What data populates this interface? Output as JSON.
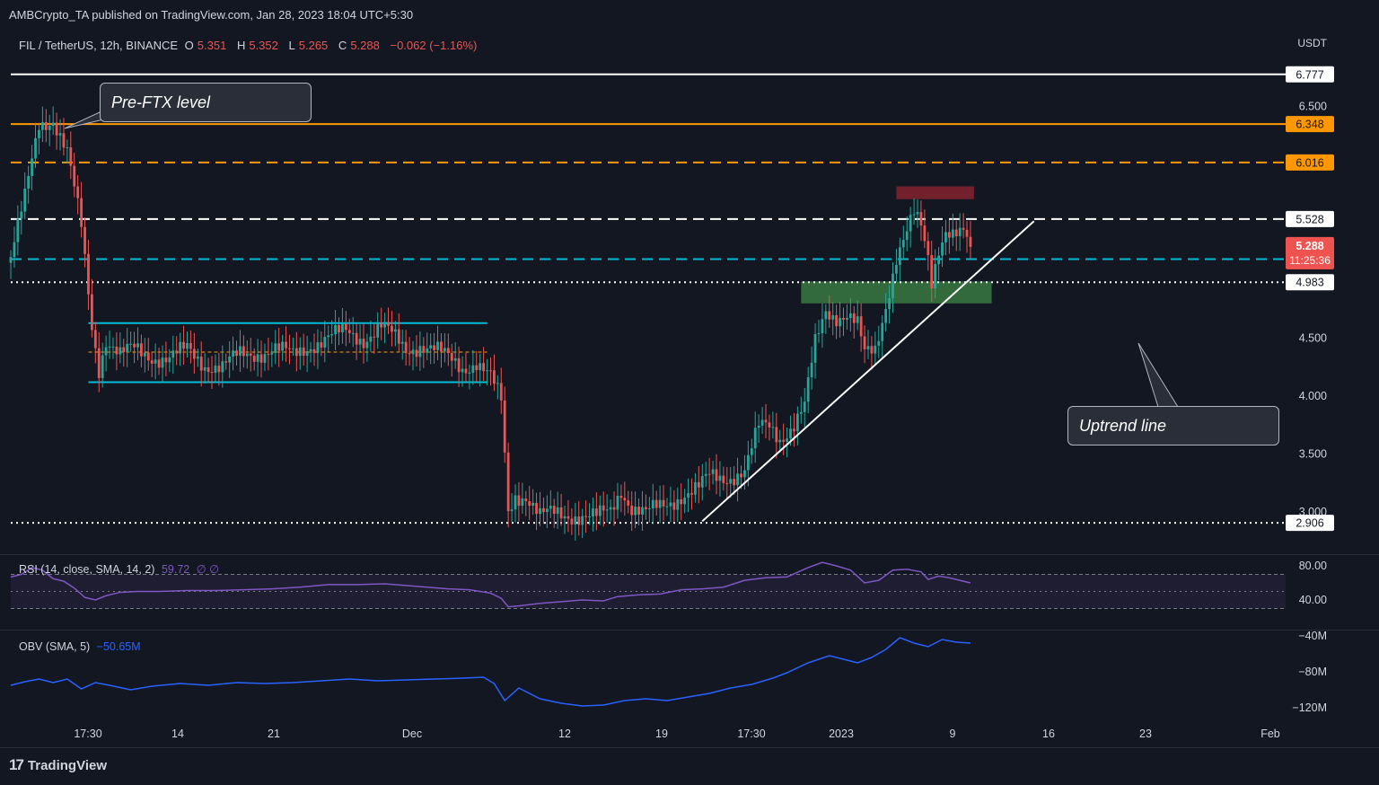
{
  "header": {
    "publisher": "AMBCrypto_TA published on TradingView.com, Jan 28, 2023 18:04 UTC+5:30"
  },
  "legend": {
    "symbol": "FIL / TetherUS, 12h, BINANCE",
    "open_label": "O",
    "open": "5.351",
    "high_label": "H",
    "high": "5.352",
    "low_label": "L",
    "low": "5.265",
    "close_label": "C",
    "close": "5.288",
    "change": "−0.062 (−1.16%)"
  },
  "currency": "USDT",
  "annotations": {
    "pre_ftx": "Pre-FTX level",
    "uptrend": "Uptrend line"
  },
  "price_tags": {
    "last": "5.288",
    "countdown": "11:25:36",
    "l6777": "6.777",
    "l6348": "6.348",
    "l6016": "6.016",
    "l5528": "5.528",
    "l5182": "5.182",
    "l4983": "4.983",
    "l2906": "2.906"
  },
  "rsi_panel": {
    "label": "RSI (14, close, SMA, 14, 2)",
    "value": "59.72",
    "extra": "∅ ∅",
    "ticks": [
      "80.00",
      "40.00"
    ]
  },
  "obv_panel": {
    "label": "OBV (SMA, 5)",
    "value": "−50.65M",
    "ticks": [
      "−40M",
      "−80M",
      "−120M"
    ]
  },
  "brand": "TradingView",
  "colors": {
    "bg": "#131722",
    "up": "#26a69a",
    "down": "#ef5350",
    "orange": "#ff9800",
    "cyan": "#00bcd4",
    "rsi": "#7e57c2",
    "obv": "#2962ff"
  },
  "chart_data": {
    "type": "candlestick",
    "timeframe": "12h",
    "y_axis_ticks": [
      6.5,
      4.5,
      4.0,
      3.5,
      3.0
    ],
    "ylim": [
      2.7,
      7.1
    ],
    "x_tick_labels": [
      "17:30",
      "14",
      "21",
      "Dec",
      "12",
      "19",
      "17:30",
      "2023",
      "9",
      "16",
      "23",
      "Feb"
    ],
    "horizontal_levels": [
      {
        "value": 6.777,
        "style": "solid",
        "color": "#ffffff"
      },
      {
        "value": 6.348,
        "style": "solid",
        "color": "#ff9800"
      },
      {
        "value": 6.016,
        "style": "dashed",
        "color": "#ff9800"
      },
      {
        "value": 5.528,
        "style": "dashed",
        "color": "#ffffff"
      },
      {
        "value": 5.182,
        "style": "dashed",
        "color": "#00bcd4"
      },
      {
        "value": 4.983,
        "style": "dotted",
        "color": "#ffffff"
      },
      {
        "value": 2.906,
        "style": "dotted",
        "color": "#ffffff"
      }
    ],
    "trendline": {
      "from": {
        "bar": 196,
        "price": 2.92
      },
      "to": {
        "bar": 290,
        "price": 5.51
      }
    },
    "zones": [
      {
        "kind": "demand",
        "bars": [
          224,
          278
        ],
        "price": [
          4.8,
          4.99
        ]
      },
      {
        "kind": "supply",
        "bars": [
          251,
          273
        ],
        "price": [
          5.7,
          5.81
        ]
      }
    ],
    "range_box": {
      "bars": [
        22,
        135
      ],
      "top": 4.63,
      "bottom": 4.12,
      "mid": 4.38
    },
    "close_path": [
      [
        0,
        5.2
      ],
      [
        4,
        5.7
      ],
      [
        8,
        6.35
      ],
      [
        12,
        6.4
      ],
      [
        16,
        6.1
      ],
      [
        20,
        5.45
      ],
      [
        23,
        4.6
      ],
      [
        25,
        4.25
      ],
      [
        27,
        4.5
      ],
      [
        31,
        4.35
      ],
      [
        35,
        4.4
      ],
      [
        40,
        4.35
      ],
      [
        45,
        4.32
      ],
      [
        50,
        4.4
      ],
      [
        55,
        4.28
      ],
      [
        60,
        4.25
      ],
      [
        65,
        4.35
      ],
      [
        70,
        4.38
      ],
      [
        75,
        4.4
      ],
      [
        80,
        4.35
      ],
      [
        85,
        4.45
      ],
      [
        90,
        4.5
      ],
      [
        95,
        4.55
      ],
      [
        100,
        4.5
      ],
      [
        105,
        4.6
      ],
      [
        108,
        4.52
      ],
      [
        112,
        4.4
      ],
      [
        116,
        4.45
      ],
      [
        120,
        4.4
      ],
      [
        124,
        4.32
      ],
      [
        128,
        4.25
      ],
      [
        132,
        4.3
      ],
      [
        136,
        4.15
      ],
      [
        139,
        3.95
      ],
      [
        141,
        3.0
      ],
      [
        143,
        3.15
      ],
      [
        146,
        3.15
      ],
      [
        150,
        2.96
      ],
      [
        154,
        2.98
      ],
      [
        160,
        2.98
      ],
      [
        166,
        2.95
      ],
      [
        170,
        3.0
      ],
      [
        173,
        3.2
      ],
      [
        176,
        3.05
      ],
      [
        180,
        2.98
      ],
      [
        185,
        3.05
      ],
      [
        190,
        3.15
      ],
      [
        195,
        3.2
      ],
      [
        198,
        3.3
      ],
      [
        202,
        3.3
      ],
      [
        208,
        3.35
      ],
      [
        212,
        3.72
      ],
      [
        215,
        3.75
      ],
      [
        218,
        3.65
      ],
      [
        222,
        3.75
      ],
      [
        225,
        3.9
      ],
      [
        228,
        4.45
      ],
      [
        231,
        4.75
      ],
      [
        234,
        4.7
      ],
      [
        237,
        4.7
      ],
      [
        240,
        4.6
      ],
      [
        242,
        4.35
      ],
      [
        245,
        4.4
      ],
      [
        248,
        4.8
      ],
      [
        251,
        5.2
      ],
      [
        254,
        5.4
      ],
      [
        256,
        5.55
      ],
      [
        258,
        5.45
      ],
      [
        260,
        5.2
      ],
      [
        261,
        5.0
      ],
      [
        263,
        5.3
      ],
      [
        265,
        5.45
      ],
      [
        267,
        5.4
      ],
      [
        270,
        5.38
      ],
      [
        272,
        5.29
      ]
    ],
    "last_close": 5.288,
    "rsi_ylim": [
      20,
      90
    ],
    "rsi_band": [
      70,
      30
    ],
    "rsi_path": [
      [
        0,
        67
      ],
      [
        3,
        70
      ],
      [
        6,
        78
      ],
      [
        9,
        75
      ],
      [
        12,
        65
      ],
      [
        15,
        62
      ],
      [
        18,
        54
      ],
      [
        21,
        43
      ],
      [
        24,
        40
      ],
      [
        27,
        45
      ],
      [
        31,
        49
      ],
      [
        36,
        50
      ],
      [
        42,
        50
      ],
      [
        50,
        51
      ],
      [
        58,
        51
      ],
      [
        66,
        52
      ],
      [
        74,
        53
      ],
      [
        82,
        55
      ],
      [
        90,
        58
      ],
      [
        98,
        58
      ],
      [
        106,
        59
      ],
      [
        112,
        57
      ],
      [
        118,
        55
      ],
      [
        124,
        53
      ],
      [
        130,
        52
      ],
      [
        136,
        48
      ],
      [
        139,
        42
      ],
      [
        141,
        32
      ],
      [
        144,
        33
      ],
      [
        150,
        36
      ],
      [
        156,
        38
      ],
      [
        162,
        40
      ],
      [
        168,
        39
      ],
      [
        172,
        44
      ],
      [
        178,
        46
      ],
      [
        184,
        47
      ],
      [
        190,
        52
      ],
      [
        196,
        53
      ],
      [
        202,
        55
      ],
      [
        208,
        63
      ],
      [
        214,
        66
      ],
      [
        220,
        67
      ],
      [
        226,
        78
      ],
      [
        230,
        84
      ],
      [
        234,
        80
      ],
      [
        238,
        75
      ],
      [
        242,
        60
      ],
      [
        246,
        63
      ],
      [
        250,
        75
      ],
      [
        254,
        76
      ],
      [
        258,
        73
      ],
      [
        260,
        64
      ],
      [
        263,
        68
      ],
      [
        266,
        66
      ],
      [
        270,
        62
      ],
      [
        272,
        60
      ]
    ],
    "obv_ylim": [
      -128,
      -32
    ],
    "obv_path": [
      [
        0,
        -95
      ],
      [
        4,
        -91
      ],
      [
        8,
        -88
      ],
      [
        12,
        -92
      ],
      [
        16,
        -88
      ],
      [
        20,
        -99
      ],
      [
        24,
        -92
      ],
      [
        28,
        -95
      ],
      [
        34,
        -100
      ],
      [
        40,
        -96
      ],
      [
        48,
        -93
      ],
      [
        56,
        -95
      ],
      [
        64,
        -92
      ],
      [
        72,
        -93
      ],
      [
        80,
        -92
      ],
      [
        88,
        -90
      ],
      [
        96,
        -88
      ],
      [
        104,
        -90
      ],
      [
        112,
        -89
      ],
      [
        120,
        -88
      ],
      [
        128,
        -87
      ],
      [
        134,
        -86
      ],
      [
        137,
        -93
      ],
      [
        140,
        -112
      ],
      [
        144,
        -98
      ],
      [
        150,
        -110
      ],
      [
        156,
        -115
      ],
      [
        162,
        -118
      ],
      [
        168,
        -117
      ],
      [
        174,
        -112
      ],
      [
        180,
        -110
      ],
      [
        186,
        -112
      ],
      [
        192,
        -108
      ],
      [
        198,
        -104
      ],
      [
        204,
        -98
      ],
      [
        210,
        -94
      ],
      [
        216,
        -87
      ],
      [
        220,
        -81
      ],
      [
        226,
        -70
      ],
      [
        232,
        -62
      ],
      [
        236,
        -66
      ],
      [
        240,
        -70
      ],
      [
        244,
        -64
      ],
      [
        248,
        -55
      ],
      [
        252,
        -42
      ],
      [
        256,
        -48
      ],
      [
        260,
        -52
      ],
      [
        264,
        -44
      ],
      [
        268,
        -47
      ],
      [
        272,
        -48
      ]
    ],
    "rsi_current": 59.72,
    "obv_current": -50.65
  }
}
